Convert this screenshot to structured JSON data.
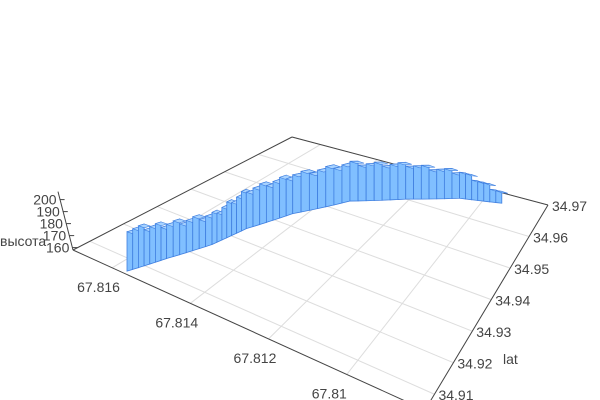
{
  "chart_data": {
    "type": "3d-bar-ribbon",
    "x_axis": {
      "title": "",
      "ticks": [
        "67.816",
        "67.814",
        "67.812",
        "67.81"
      ],
      "range": [
        67.817,
        67.808
      ]
    },
    "y_axis": {
      "title": "lat",
      "ticks": [
        "34.91",
        "34.92",
        "34.93",
        "34.94",
        "34.95",
        "34.96",
        "34.97"
      ],
      "range": [
        34.905,
        34.97
      ]
    },
    "z_axis": {
      "title": "высота",
      "ticks": [
        "160",
        "170",
        "180",
        "190",
        "200"
      ],
      "range": [
        158,
        205
      ]
    },
    "grid": true,
    "colors": {
      "bar_fill": "#80bfff",
      "bar_edge": "#3f7fe0",
      "grid": "#dddddd",
      "axis": "#444444"
    },
    "points": [
      {
        "x": 67.8157,
        "lat": 34.906,
        "z": 193
      },
      {
        "x": 67.8154,
        "lat": 34.915,
        "z": 188
      },
      {
        "x": 67.815,
        "lat": 34.925,
        "z": 186
      },
      {
        "x": 67.8148,
        "lat": 34.934,
        "z": 196
      },
      {
        "x": 67.8143,
        "lat": 34.944,
        "z": 199
      },
      {
        "x": 67.8134,
        "lat": 34.954,
        "z": 201
      },
      {
        "x": 67.8121,
        "lat": 34.96,
        "z": 199
      },
      {
        "x": 67.8107,
        "lat": 34.965,
        "z": 190
      },
      {
        "x": 67.8094,
        "lat": 34.967,
        "z": 170
      }
    ]
  }
}
